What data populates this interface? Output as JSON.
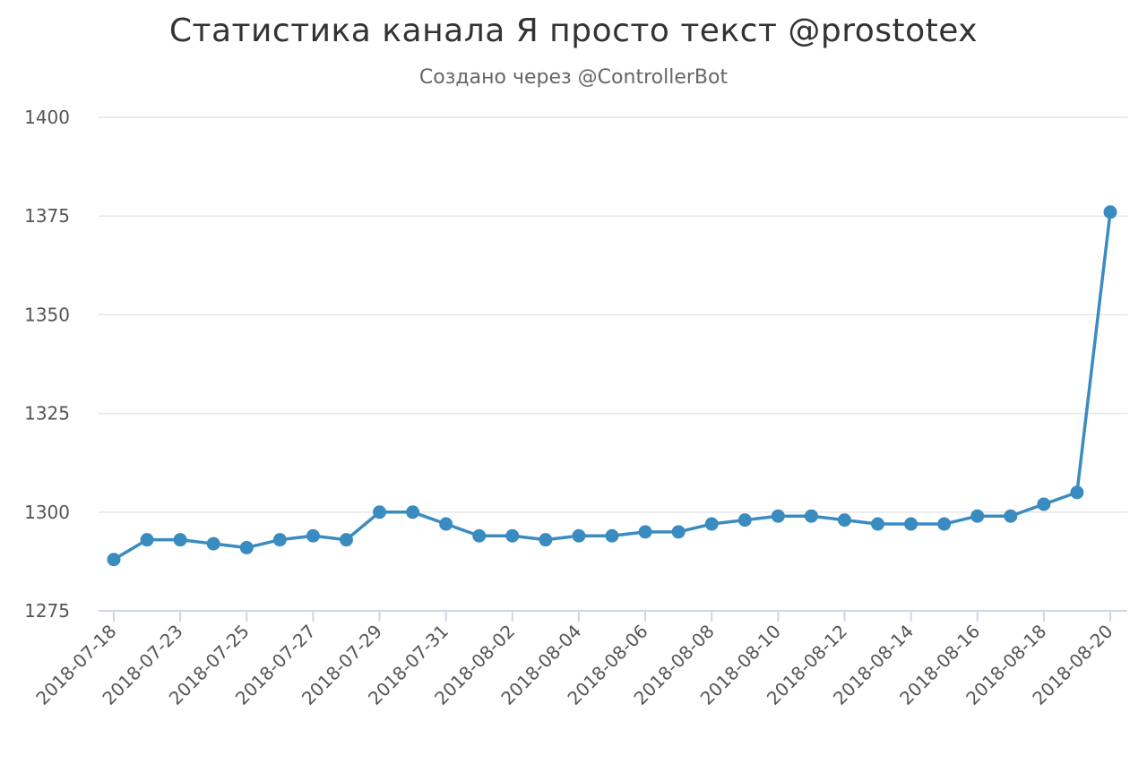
{
  "chart_data": {
    "type": "line",
    "title": "Статистика канала Я просто текст @prostotex",
    "subtitle": "Создано через @ControllerBot",
    "xlabel": "",
    "ylabel": "",
    "ylim": [
      1275,
      1400
    ],
    "yticks": [
      1275,
      1300,
      1325,
      1350,
      1375,
      1400
    ],
    "grid": true,
    "legend": "none",
    "x_tick_labels": [
      "2018-07-18",
      "2018-07-23",
      "2018-07-25",
      "2018-07-27",
      "2018-07-29",
      "2018-07-31",
      "2018-08-02",
      "2018-08-04",
      "2018-08-06",
      "2018-08-08",
      "2018-08-10",
      "2018-08-12",
      "2018-08-14",
      "2018-08-16",
      "2018-08-18",
      "2018-08-20"
    ],
    "x": [
      "2018-07-18",
      "2018-07-22",
      "2018-07-23",
      "2018-07-24",
      "2018-07-25",
      "2018-07-26",
      "2018-07-27",
      "2018-07-28",
      "2018-07-29",
      "2018-07-30",
      "2018-07-31",
      "2018-08-01",
      "2018-08-02",
      "2018-08-03",
      "2018-08-04",
      "2018-08-05",
      "2018-08-06",
      "2018-08-07",
      "2018-08-08",
      "2018-08-09",
      "2018-08-10",
      "2018-08-11",
      "2018-08-12",
      "2018-08-13",
      "2018-08-14",
      "2018-08-15",
      "2018-08-16",
      "2018-08-17",
      "2018-08-18",
      "2018-08-19",
      "2018-08-20"
    ],
    "series": [
      {
        "color": "#3a8cc0",
        "values": [
          1288,
          1293,
          1293,
          1292,
          1291,
          1293,
          1294,
          1293,
          1300,
          1300,
          1297,
          1294,
          1294,
          1293,
          1294,
          1294,
          1295,
          1295,
          1297,
          1298,
          1299,
          1299,
          1298,
          1297,
          1297,
          1297,
          1299,
          1299,
          1302,
          1305,
          1376
        ]
      }
    ]
  }
}
